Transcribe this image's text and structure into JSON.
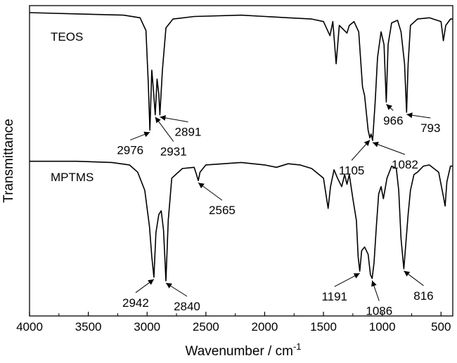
{
  "chart_data": {
    "type": "line",
    "title": "",
    "xlabel": "Wavenumber / cm",
    "xlabel_superscript": "-1",
    "ylabel": "Transmittance",
    "xlim": [
      4000,
      400
    ],
    "x_reversed": true,
    "xticks": [
      4000,
      3500,
      3000,
      2500,
      2000,
      1500,
      1000,
      500
    ],
    "y_tick_labels": false,
    "grid": false,
    "legend": "none",
    "y_units": "relative transmittance (0 = deepest band, 1 = baseline)",
    "series": [
      {
        "name": "TEOS",
        "color": "#000000",
        "points": [
          [
            4000,
            1.0
          ],
          [
            3600,
            0.99
          ],
          [
            3200,
            0.98
          ],
          [
            3060,
            0.96
          ],
          [
            3010,
            0.86
          ],
          [
            2990,
            0.45
          ],
          [
            2976,
            0.08
          ],
          [
            2960,
            0.55
          ],
          [
            2945,
            0.38
          ],
          [
            2931,
            0.2
          ],
          [
            2915,
            0.48
          ],
          [
            2900,
            0.36
          ],
          [
            2891,
            0.2
          ],
          [
            2870,
            0.55
          ],
          [
            2840,
            0.88
          ],
          [
            2780,
            0.95
          ],
          [
            2600,
            0.97
          ],
          [
            2200,
            0.98
          ],
          [
            1800,
            0.96
          ],
          [
            1600,
            0.95
          ],
          [
            1500,
            0.93
          ],
          [
            1445,
            0.82
          ],
          [
            1420,
            0.93
          ],
          [
            1392,
            0.6
          ],
          [
            1365,
            0.9
          ],
          [
            1300,
            0.84
          ],
          [
            1280,
            0.9
          ],
          [
            1240,
            0.93
          ],
          [
            1200,
            0.85
          ],
          [
            1168,
            0.42
          ],
          [
            1150,
            0.35
          ],
          [
            1120,
            0.08
          ],
          [
            1105,
            0.02
          ],
          [
            1095,
            0.05
          ],
          [
            1082,
            0.0
          ],
          [
            1060,
            0.3
          ],
          [
            1040,
            0.65
          ],
          [
            1010,
            0.85
          ],
          [
            985,
            0.75
          ],
          [
            966,
            0.3
          ],
          [
            950,
            0.75
          ],
          [
            920,
            0.92
          ],
          [
            870,
            0.94
          ],
          [
            840,
            0.85
          ],
          [
            810,
            0.6
          ],
          [
            793,
            0.22
          ],
          [
            780,
            0.6
          ],
          [
            760,
            0.9
          ],
          [
            700,
            0.95
          ],
          [
            600,
            0.96
          ],
          [
            500,
            0.93
          ],
          [
            480,
            0.78
          ],
          [
            460,
            0.9
          ],
          [
            420,
            0.95
          ],
          [
            400,
            0.95
          ]
        ],
        "peak_labels": [
          2976,
          2931,
          2891,
          1105,
          1082,
          966,
          793
        ]
      },
      {
        "name": "MPTMS",
        "color": "#000000",
        "points": [
          [
            4000,
            0.99
          ],
          [
            3600,
            0.99
          ],
          [
            3300,
            0.98
          ],
          [
            3150,
            0.96
          ],
          [
            3080,
            0.9
          ],
          [
            3020,
            0.75
          ],
          [
            2980,
            0.45
          ],
          [
            2960,
            0.2
          ],
          [
            2942,
            0.03
          ],
          [
            2925,
            0.4
          ],
          [
            2900,
            0.55
          ],
          [
            2880,
            0.58
          ],
          [
            2860,
            0.42
          ],
          [
            2840,
            0.0
          ],
          [
            2820,
            0.5
          ],
          [
            2790,
            0.85
          ],
          [
            2700,
            0.93
          ],
          [
            2600,
            0.94
          ],
          [
            2580,
            0.88
          ],
          [
            2565,
            0.83
          ],
          [
            2550,
            0.9
          ],
          [
            2500,
            0.96
          ],
          [
            2200,
            0.98
          ],
          [
            2000,
            0.96
          ],
          [
            1900,
            0.94
          ],
          [
            1800,
            0.97
          ],
          [
            1700,
            0.96
          ],
          [
            1600,
            0.93
          ],
          [
            1500,
            0.85
          ],
          [
            1460,
            0.6
          ],
          [
            1440,
            0.78
          ],
          [
            1410,
            0.92
          ],
          [
            1380,
            0.85
          ],
          [
            1345,
            0.78
          ],
          [
            1320,
            0.88
          ],
          [
            1300,
            0.8
          ],
          [
            1280,
            0.88
          ],
          [
            1250,
            0.68
          ],
          [
            1220,
            0.5
          ],
          [
            1205,
            0.2
          ],
          [
            1191,
            0.08
          ],
          [
            1175,
            0.25
          ],
          [
            1150,
            0.28
          ],
          [
            1120,
            0.22
          ],
          [
            1100,
            0.05
          ],
          [
            1086,
            0.02
          ],
          [
            1070,
            0.15
          ],
          [
            1050,
            0.45
          ],
          [
            1030,
            0.72
          ],
          [
            1010,
            0.78
          ],
          [
            990,
            0.68
          ],
          [
            960,
            0.85
          ],
          [
            920,
            0.95
          ],
          [
            880,
            0.93
          ],
          [
            860,
            0.75
          ],
          [
            840,
            0.35
          ],
          [
            816,
            0.1
          ],
          [
            800,
            0.3
          ],
          [
            780,
            0.55
          ],
          [
            760,
            0.75
          ],
          [
            730,
            0.88
          ],
          [
            700,
            0.9
          ],
          [
            650,
            0.95
          ],
          [
            600,
            0.96
          ],
          [
            520,
            0.9
          ],
          [
            480,
            0.7
          ],
          [
            465,
            0.62
          ],
          [
            450,
            0.82
          ],
          [
            420,
            0.95
          ],
          [
            400,
            0.95
          ]
        ],
        "peak_labels": [
          2942,
          2840,
          2565,
          1191,
          1086,
          816
        ]
      }
    ]
  }
}
